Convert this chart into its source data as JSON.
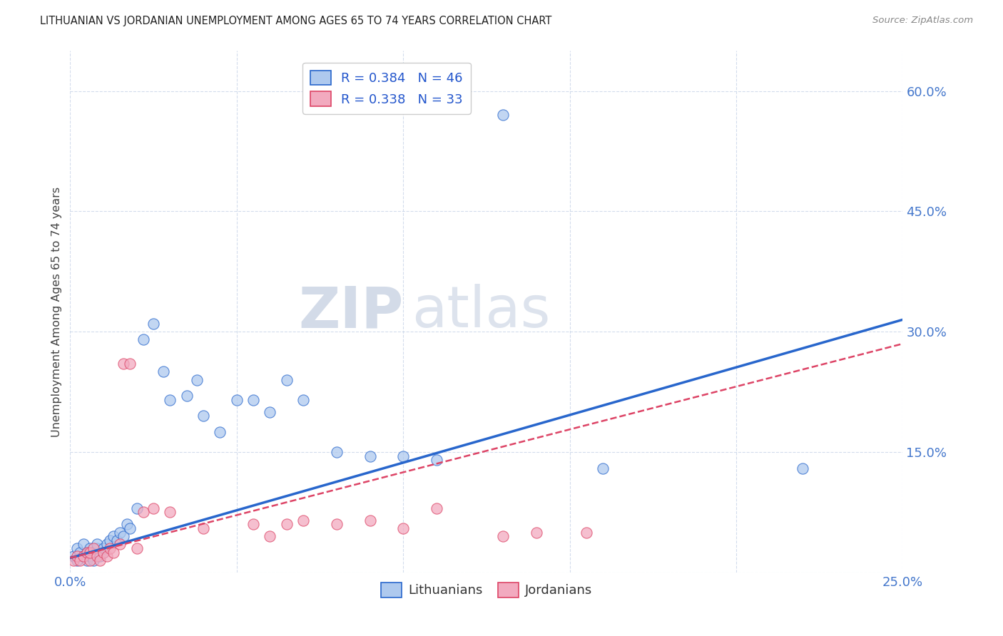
{
  "title": "LITHUANIAN VS JORDANIAN UNEMPLOYMENT AMONG AGES 65 TO 74 YEARS CORRELATION CHART",
  "source": "Source: ZipAtlas.com",
  "ylabel": "Unemployment Among Ages 65 to 74 years",
  "xlim": [
    0.0,
    0.25
  ],
  "ylim": [
    0.0,
    0.65
  ],
  "xticks": [
    0.0,
    0.05,
    0.1,
    0.15,
    0.2,
    0.25
  ],
  "yticks": [
    0.0,
    0.15,
    0.3,
    0.45,
    0.6
  ],
  "R_lith": 0.384,
  "N_lith": 46,
  "R_jord": 0.338,
  "N_jord": 33,
  "lith_color": "#aec9ee",
  "jord_color": "#f2aabf",
  "lith_line_color": "#2866cc",
  "jord_line_color": "#dd4466",
  "tick_color": "#4477cc",
  "title_color": "#222222",
  "source_color": "#888888",
  "watermark_color": "#ccd8ee",
  "legend_label_color": "#2255cc",
  "watermark": "ZIPatlas",
  "lith_x": [
    0.001,
    0.002,
    0.002,
    0.003,
    0.004,
    0.004,
    0.005,
    0.005,
    0.006,
    0.006,
    0.007,
    0.007,
    0.008,
    0.008,
    0.009,
    0.01,
    0.01,
    0.011,
    0.012,
    0.013,
    0.014,
    0.015,
    0.016,
    0.017,
    0.018,
    0.02,
    0.022,
    0.025,
    0.028,
    0.03,
    0.035,
    0.038,
    0.04,
    0.045,
    0.05,
    0.055,
    0.06,
    0.065,
    0.07,
    0.08,
    0.09,
    0.1,
    0.11,
    0.13,
    0.16,
    0.22
  ],
  "lith_y": [
    0.02,
    0.015,
    0.03,
    0.025,
    0.02,
    0.035,
    0.015,
    0.025,
    0.02,
    0.03,
    0.015,
    0.025,
    0.03,
    0.035,
    0.02,
    0.025,
    0.03,
    0.035,
    0.04,
    0.045,
    0.04,
    0.05,
    0.045,
    0.06,
    0.055,
    0.08,
    0.29,
    0.31,
    0.25,
    0.215,
    0.22,
    0.24,
    0.195,
    0.175,
    0.215,
    0.215,
    0.2,
    0.24,
    0.215,
    0.15,
    0.145,
    0.145,
    0.14,
    0.57,
    0.13,
    0.13
  ],
  "jord_x": [
    0.001,
    0.002,
    0.003,
    0.004,
    0.005,
    0.006,
    0.006,
    0.007,
    0.008,
    0.009,
    0.01,
    0.011,
    0.012,
    0.013,
    0.015,
    0.016,
    0.018,
    0.02,
    0.022,
    0.025,
    0.03,
    0.04,
    0.055,
    0.06,
    0.065,
    0.07,
    0.08,
    0.09,
    0.1,
    0.11,
    0.13,
    0.14,
    0.155
  ],
  "jord_y": [
    0.015,
    0.02,
    0.015,
    0.02,
    0.025,
    0.015,
    0.025,
    0.03,
    0.02,
    0.015,
    0.025,
    0.02,
    0.03,
    0.025,
    0.035,
    0.26,
    0.26,
    0.03,
    0.075,
    0.08,
    0.075,
    0.055,
    0.06,
    0.045,
    0.06,
    0.065,
    0.06,
    0.065,
    0.055,
    0.08,
    0.045,
    0.05,
    0.05
  ],
  "lith_line_x0": 0.0,
  "lith_line_y0": 0.018,
  "lith_line_x1": 0.25,
  "lith_line_y1": 0.315,
  "jord_line_x0": 0.0,
  "jord_line_y0": 0.018,
  "jord_line_x1": 0.25,
  "jord_line_y1": 0.285
}
